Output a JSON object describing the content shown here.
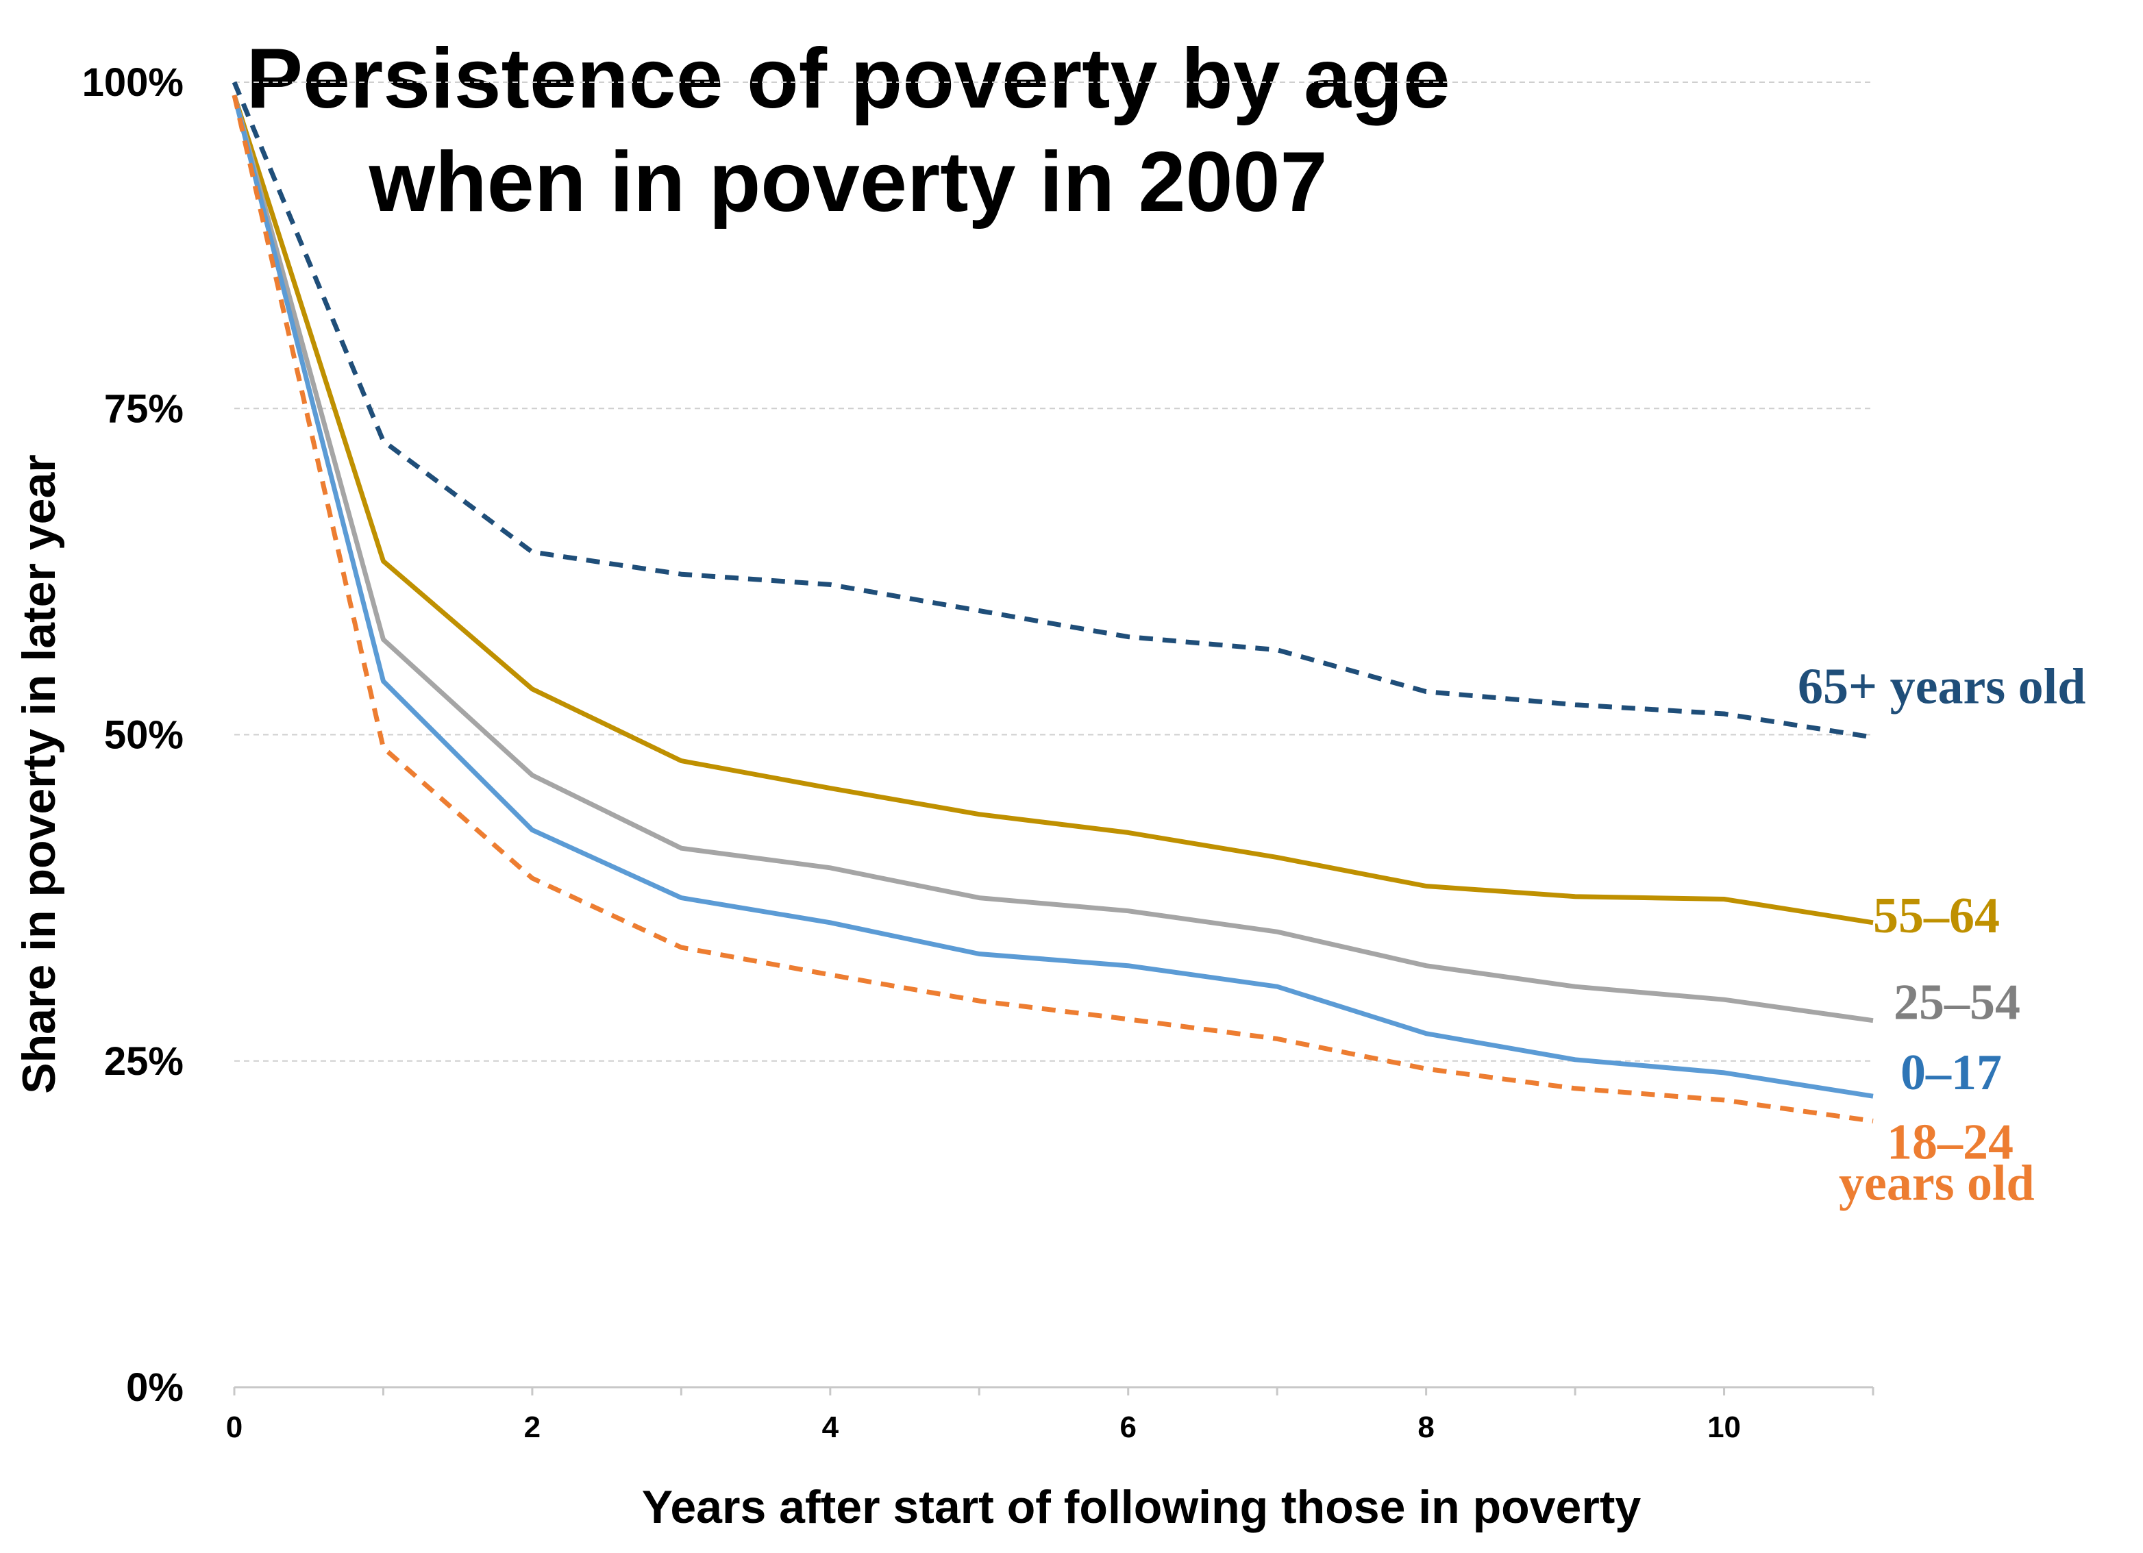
{
  "chart_data": {
    "type": "line",
    "title_lines": [
      "Persistence of poverty by age",
      "when in poverty in 2007"
    ],
    "xlabel": "Years after start of following those in poverty",
    "ylabel": "Share in poverty in later year",
    "x": [
      0,
      1,
      2,
      3,
      4,
      5,
      6,
      7,
      8,
      9,
      10,
      11
    ],
    "xlim": [
      0,
      11
    ],
    "ylim": [
      0,
      100
    ],
    "x_ticks": [
      0,
      2,
      4,
      6,
      8,
      10
    ],
    "x_tick_labels": [
      "0",
      "2",
      "4",
      "6",
      "8",
      "10"
    ],
    "y_ticks": [
      0,
      25,
      50,
      75,
      100
    ],
    "y_tick_labels": [
      "0%",
      "25%",
      "50%",
      "75%",
      "100%"
    ],
    "grid": "horizontal dashed",
    "series": [
      {
        "name": "65+ years old",
        "label_lines": [
          "65+ years old"
        ],
        "color": "#1f4e79",
        "style": "dashed",
        "values": [
          100,
          72.5,
          64,
          62.3,
          61.5,
          59.5,
          57.5,
          56.5,
          53.3,
          52.3,
          51.6,
          49.8
        ]
      },
      {
        "name": "55–64",
        "label_lines": [
          "55–64"
        ],
        "color": "#bf9000",
        "style": "solid",
        "values": [
          99,
          63.3,
          53.5,
          48,
          45.9,
          43.9,
          42.5,
          40.6,
          38.4,
          37.6,
          37.4,
          35.6
        ]
      },
      {
        "name": "25–54",
        "label_lines": [
          "25–54"
        ],
        "color": "#a5a5a5",
        "style": "solid",
        "values": [
          99,
          57.3,
          46.9,
          41.3,
          39.8,
          37.5,
          36.5,
          34.9,
          32.3,
          30.7,
          29.7,
          28.1
        ]
      },
      {
        "name": "0–17",
        "label_lines": [
          "0–17"
        ],
        "color": "#5b9bd5",
        "style": "solid",
        "values": [
          99,
          54.1,
          42.7,
          37.5,
          35.6,
          33.2,
          32.3,
          30.7,
          27.1,
          25.1,
          24.1,
          22.3
        ]
      },
      {
        "name": "18–24 years old",
        "label_lines": [
          "18–24",
          "years old"
        ],
        "color": "#ed7d31",
        "style": "dashed",
        "values": [
          99,
          49,
          39,
          33.7,
          31.6,
          29.6,
          28.2,
          26.7,
          24.4,
          22.9,
          22,
          20.4
        ]
      }
    ]
  }
}
